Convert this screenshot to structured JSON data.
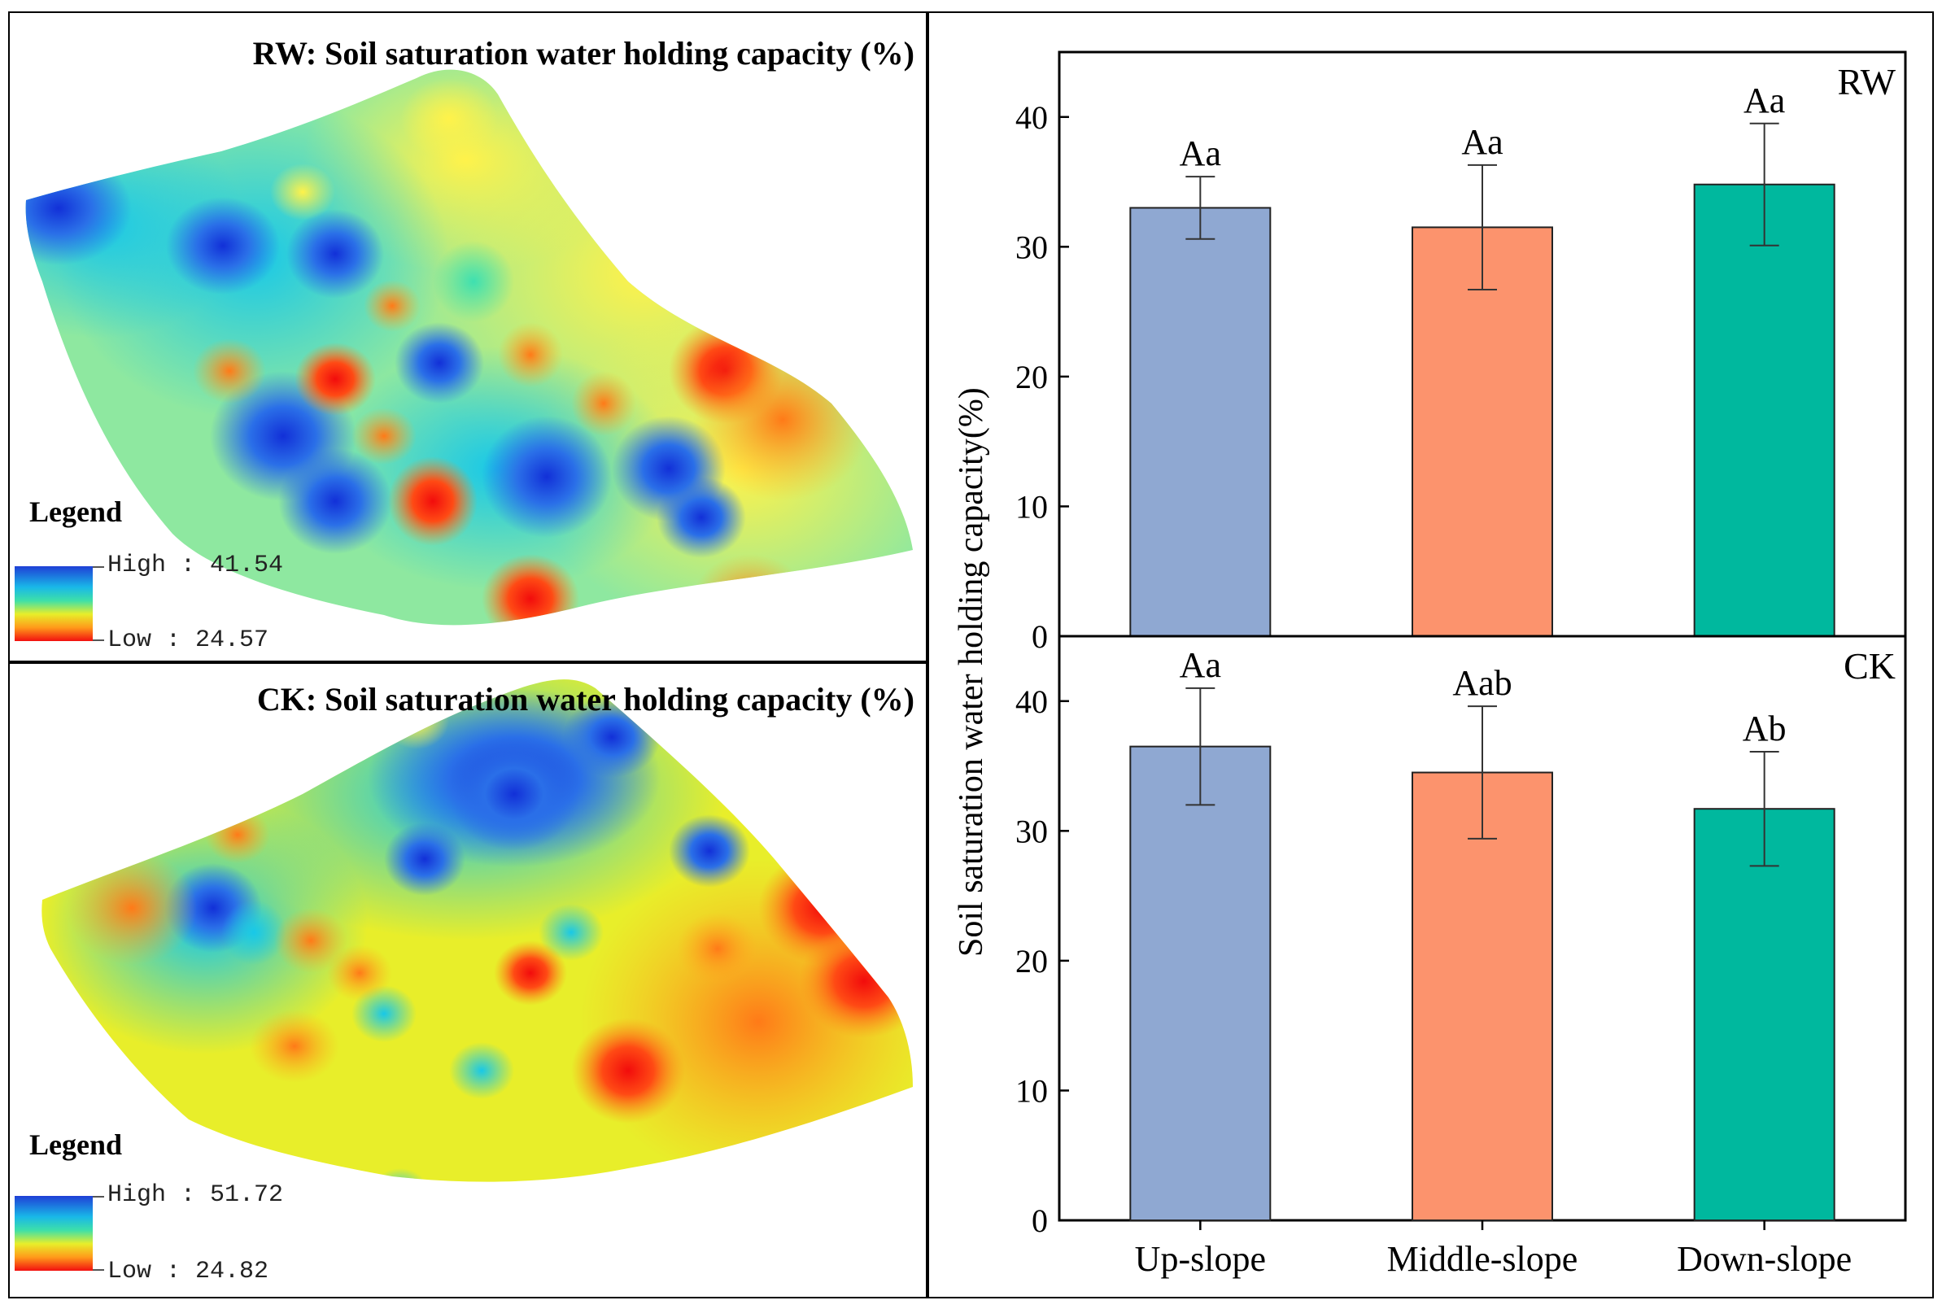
{
  "maps": [
    {
      "id": "rw",
      "title": "RW: Soil saturation water holding capacity (%)",
      "legend_title": "Legend",
      "legend_high": "High : 41.54",
      "legend_low": "Low : 24.57"
    },
    {
      "id": "ck",
      "title": "CK: Soil saturation water holding capacity (%)",
      "legend_title": "Legend",
      "legend_high": "High : 51.72",
      "legend_low": "Low : 24.82"
    }
  ],
  "colors": {
    "ramp_high": "#1f3fd6",
    "ramp_mid": "#e8ee2a",
    "ramp_low": "#f21010",
    "up_slope": "#8fa8d2",
    "middle_slope": "#fc936d",
    "down_slope": "#00b89e"
  },
  "chart_data": {
    "type": "bar",
    "ylabel": "Soil saturation water holding capacity(%)",
    "categories": [
      "Up-slope",
      "Middle-slope",
      "Down-slope"
    ],
    "panels": [
      {
        "name": "RW",
        "ylim": [
          0,
          45
        ],
        "yticks": [
          0,
          10,
          20,
          30,
          40
        ],
        "values": [
          33.0,
          31.5,
          34.8
        ],
        "errors": [
          2.4,
          4.8,
          4.7
        ],
        "letters": [
          "Aa",
          "Aa",
          "Aa"
        ]
      },
      {
        "name": "CK",
        "ylim": [
          0,
          45
        ],
        "yticks": [
          0,
          10,
          20,
          30,
          40
        ],
        "values": [
          36.5,
          34.5,
          31.7
        ],
        "errors": [
          4.5,
          5.1,
          4.4
        ],
        "letters": [
          "Aa",
          "Aab",
          "Ab"
        ]
      }
    ]
  }
}
